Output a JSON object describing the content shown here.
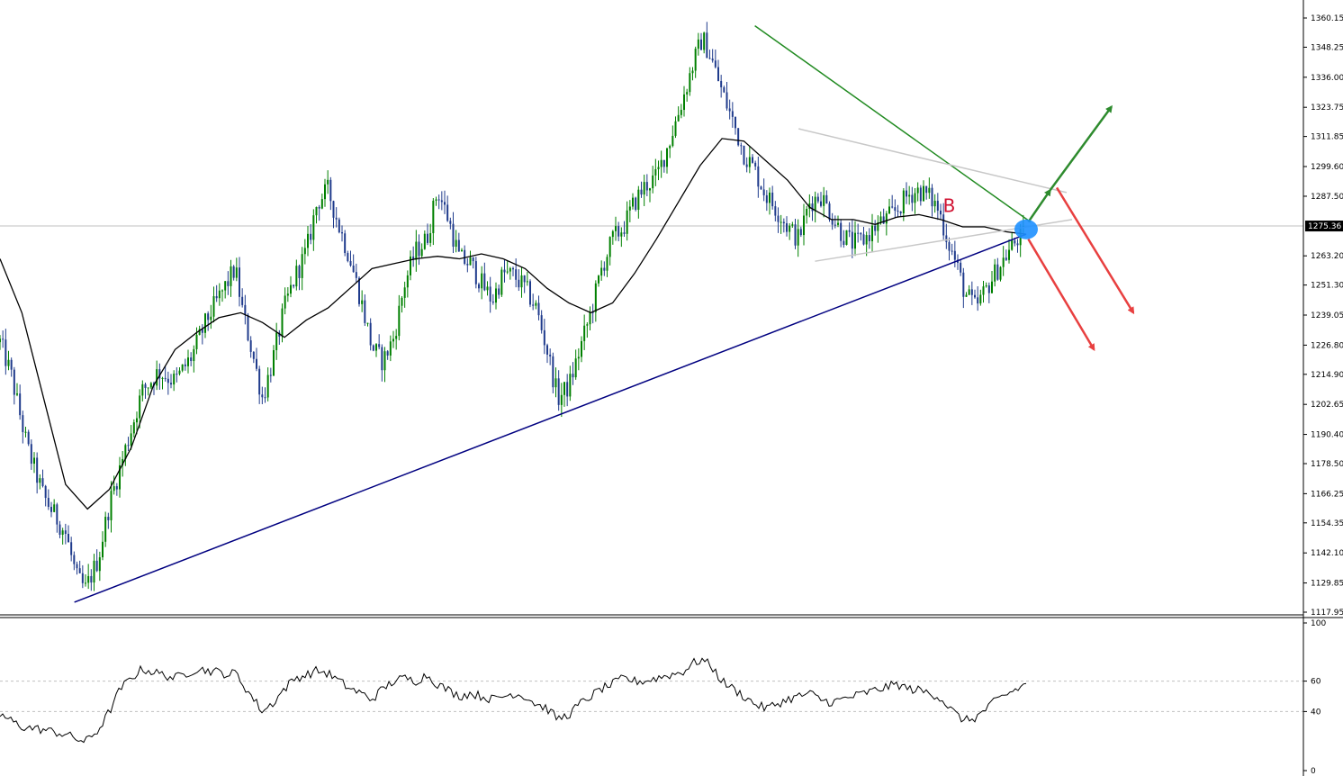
{
  "chart_data": [
    {
      "type": "candlestick",
      "panel": "price",
      "y_axis_ticks": [
        "1360.15",
        "1348.25",
        "1336.00",
        "1323.75",
        "1311.85",
        "1299.60",
        "1287.50",
        "1275.36",
        "1263.20",
        "1251.30",
        "1239.05",
        "1226.80",
        "1214.90",
        "1202.65",
        "1190.40",
        "1178.50",
        "1166.25",
        "1154.35",
        "1142.10",
        "1129.85",
        "1117.95"
      ],
      "ylim": [
        1117.95,
        1361.5
      ],
      "current_price": 1275.36,
      "current_price_label": "1275.36",
      "bar_count": 360,
      "close_path": [
        [
          0,
          1228
        ],
        [
          10,
          1215
        ],
        [
          25,
          1185
        ],
        [
          40,
          1165
        ],
        [
          60,
          1150
        ],
        [
          70,
          1132
        ],
        [
          78,
          1127
        ],
        [
          90,
          1140
        ],
        [
          100,
          1162
        ],
        [
          115,
          1185
        ],
        [
          130,
          1208
        ],
        [
          145,
          1216
        ],
        [
          160,
          1212
        ],
        [
          175,
          1222
        ],
        [
          190,
          1238
        ],
        [
          205,
          1250
        ],
        [
          215,
          1258
        ],
        [
          222,
          1240
        ],
        [
          230,
          1225
        ],
        [
          240,
          1205
        ],
        [
          250,
          1222
        ],
        [
          260,
          1242
        ],
        [
          270,
          1255
        ],
        [
          280,
          1265
        ],
        [
          290,
          1285
        ],
        [
          300,
          1290
        ],
        [
          310,
          1275
        ],
        [
          320,
          1262
        ],
        [
          330,
          1245
        ],
        [
          340,
          1226
        ],
        [
          350,
          1220
        ],
        [
          360,
          1230
        ],
        [
          370,
          1252
        ],
        [
          380,
          1265
        ],
        [
          390,
          1270
        ],
        [
          400,
          1290
        ],
        [
          410,
          1278
        ],
        [
          420,
          1262
        ],
        [
          430,
          1260
        ],
        [
          440,
          1252
        ],
        [
          450,
          1245
        ],
        [
          460,
          1256
        ],
        [
          470,
          1255
        ],
        [
          480,
          1250
        ],
        [
          490,
          1242
        ],
        [
          500,
          1225
        ],
        [
          510,
          1205
        ],
        [
          520,
          1210
        ],
        [
          530,
          1225
        ],
        [
          540,
          1240
        ],
        [
          550,
          1258
        ],
        [
          560,
          1270
        ],
        [
          570,
          1275
        ],
        [
          580,
          1285
        ],
        [
          590,
          1292
        ],
        [
          600,
          1295
        ],
        [
          612,
          1310
        ],
        [
          624,
          1327
        ],
        [
          634,
          1342
        ],
        [
          642,
          1352
        ],
        [
          650,
          1344
        ],
        [
          660,
          1330
        ],
        [
          670,
          1318
        ],
        [
          680,
          1305
        ],
        [
          690,
          1298
        ],
        [
          700,
          1288
        ],
        [
          710,
          1282
        ],
        [
          720,
          1275
        ],
        [
          730,
          1270
        ],
        [
          740,
          1285
        ],
        [
          750,
          1288
        ],
        [
          760,
          1280
        ],
        [
          770,
          1272
        ],
        [
          780,
          1268
        ],
        [
          790,
          1270
        ],
        [
          800,
          1275
        ],
        [
          810,
          1278
        ],
        [
          820,
          1282
        ],
        [
          830,
          1288
        ],
        [
          840,
          1290
        ],
        [
          850,
          1287
        ],
        [
          858,
          1282
        ],
        [
          866,
          1270
        ],
        [
          874,
          1260
        ],
        [
          882,
          1248
        ],
        [
          892,
          1242
        ],
        [
          902,
          1250
        ],
        [
          912,
          1258
        ],
        [
          922,
          1265
        ],
        [
          930,
          1270
        ],
        [
          938,
          1272
        ]
      ],
      "ma_path": [
        [
          0,
          1262
        ],
        [
          20,
          1240
        ],
        [
          40,
          1205
        ],
        [
          60,
          1170
        ],
        [
          80,
          1160
        ],
        [
          100,
          1168
        ],
        [
          120,
          1185
        ],
        [
          140,
          1210
        ],
        [
          160,
          1225
        ],
        [
          180,
          1232
        ],
        [
          200,
          1238
        ],
        [
          220,
          1240
        ],
        [
          240,
          1236
        ],
        [
          260,
          1230
        ],
        [
          280,
          1237
        ],
        [
          300,
          1242
        ],
        [
          320,
          1250
        ],
        [
          340,
          1258
        ],
        [
          360,
          1260
        ],
        [
          380,
          1262
        ],
        [
          400,
          1263
        ],
        [
          420,
          1262
        ],
        [
          440,
          1264
        ],
        [
          460,
          1262
        ],
        [
          480,
          1258
        ],
        [
          500,
          1250
        ],
        [
          520,
          1244
        ],
        [
          540,
          1240
        ],
        [
          560,
          1244
        ],
        [
          580,
          1256
        ],
        [
          600,
          1270
        ],
        [
          620,
          1285
        ],
        [
          640,
          1300
        ],
        [
          660,
          1311
        ],
        [
          680,
          1310
        ],
        [
          700,
          1302
        ],
        [
          720,
          1294
        ],
        [
          740,
          1283
        ],
        [
          760,
          1278
        ],
        [
          780,
          1278
        ],
        [
          800,
          1276
        ],
        [
          820,
          1279
        ],
        [
          840,
          1280
        ],
        [
          860,
          1278
        ],
        [
          880,
          1275
        ],
        [
          900,
          1275
        ],
        [
          920,
          1273
        ],
        [
          938,
          1272
        ]
      ],
      "trendlines": [
        {
          "name": "support",
          "color": "#000080",
          "from": [
            68,
            1122
          ],
          "to": [
            938,
            1272
          ]
        },
        {
          "name": "resistance",
          "color": "#228b22",
          "from": [
            690,
            1357
          ],
          "to": [
            942,
            1277
          ]
        },
        {
          "name": "triangle-upper",
          "color": "#c8c8c8",
          "from": [
            730,
            1315
          ],
          "to": [
            975,
            1289
          ]
        },
        {
          "name": "triangle-lower",
          "color": "#c8c8c8",
          "from": [
            745,
            1261
          ],
          "to": [
            980,
            1278
          ]
        }
      ],
      "arrows": [
        {
          "name": "bullish-arrow-1",
          "color": "#2e8b2e",
          "from": [
            940,
            1277
          ],
          "to": [
            960,
            1290
          ]
        },
        {
          "name": "bullish-arrow-2",
          "color": "#2e8b2e",
          "from": [
            960,
            1290
          ],
          "to": [
            1016,
            1324
          ]
        },
        {
          "name": "bearish-arrow-1",
          "color": "#e84040",
          "from": [
            940,
            1270
          ],
          "to": [
            1000,
            1225
          ]
        },
        {
          "name": "bearish-arrow-2",
          "color": "#e84040",
          "from": [
            966,
            1291
          ],
          "to": [
            1036,
            1240
          ]
        }
      ],
      "marker_text": "B",
      "marker_position": [
        862,
        1281
      ],
      "breakout_point": [
        938,
        1274
      ],
      "colors": {
        "up": "#008000",
        "down": "#1f3b8c",
        "ma": "#000000",
        "current_line": "#c0c0c0",
        "label_bg": "#000000",
        "marker": "#d01030",
        "breakout": "#1e90ff"
      }
    },
    {
      "type": "line",
      "panel": "oscillator",
      "y_axis_ticks": [
        "100",
        "60",
        "40",
        "0"
      ],
      "ylim": [
        0,
        100
      ],
      "levels": [
        60,
        40
      ],
      "path": [
        [
          0,
          38
        ],
        [
          20,
          30
        ],
        [
          40,
          28
        ],
        [
          60,
          25
        ],
        [
          70,
          22
        ],
        [
          78,
          20
        ],
        [
          90,
          28
        ],
        [
          100,
          40
        ],
        [
          110,
          55
        ],
        [
          120,
          62
        ],
        [
          130,
          68
        ],
        [
          140,
          66
        ],
        [
          150,
          64
        ],
        [
          160,
          62
        ],
        [
          170,
          65
        ],
        [
          180,
          68
        ],
        [
          190,
          67
        ],
        [
          200,
          66
        ],
        [
          210,
          64
        ],
        [
          215,
          66
        ],
        [
          222,
          58
        ],
        [
          230,
          50
        ],
        [
          240,
          40
        ],
        [
          250,
          46
        ],
        [
          260,
          55
        ],
        [
          270,
          62
        ],
        [
          280,
          64
        ],
        [
          290,
          67
        ],
        [
          300,
          65
        ],
        [
          310,
          60
        ],
        [
          320,
          55
        ],
        [
          330,
          52
        ],
        [
          340,
          48
        ],
        [
          350,
          55
        ],
        [
          360,
          60
        ],
        [
          370,
          62
        ],
        [
          380,
          60
        ],
        [
          390,
          64
        ],
        [
          400,
          58
        ],
        [
          410,
          54
        ],
        [
          420,
          50
        ],
        [
          430,
          52
        ],
        [
          440,
          50
        ],
        [
          450,
          48
        ],
        [
          460,
          50
        ],
        [
          470,
          52
        ],
        [
          480,
          50
        ],
        [
          490,
          45
        ],
        [
          500,
          42
        ],
        [
          510,
          35
        ],
        [
          520,
          38
        ],
        [
          530,
          45
        ],
        [
          540,
          50
        ],
        [
          550,
          55
        ],
        [
          560,
          58
        ],
        [
          570,
          62
        ],
        [
          580,
          60
        ],
        [
          590,
          60
        ],
        [
          600,
          62
        ],
        [
          612,
          64
        ],
        [
          624,
          66
        ],
        [
          634,
          72
        ],
        [
          642,
          74
        ],
        [
          650,
          70
        ],
        [
          660,
          60
        ],
        [
          670,
          55
        ],
        [
          680,
          50
        ],
        [
          690,
          45
        ],
        [
          700,
          42
        ],
        [
          710,
          45
        ],
        [
          720,
          48
        ],
        [
          730,
          50
        ],
        [
          740,
          52
        ],
        [
          750,
          48
        ],
        [
          760,
          46
        ],
        [
          770,
          48
        ],
        [
          780,
          50
        ],
        [
          790,
          52
        ],
        [
          800,
          54
        ],
        [
          810,
          56
        ],
        [
          820,
          58
        ],
        [
          830,
          55
        ],
        [
          840,
          54
        ],
        [
          850,
          52
        ],
        [
          858,
          50
        ],
        [
          866,
          44
        ],
        [
          874,
          38
        ],
        [
          882,
          34
        ],
        [
          892,
          36
        ],
        [
          902,
          42
        ],
        [
          912,
          48
        ],
        [
          922,
          52
        ],
        [
          930,
          55
        ],
        [
          938,
          58
        ]
      ],
      "color": "#000000"
    }
  ]
}
